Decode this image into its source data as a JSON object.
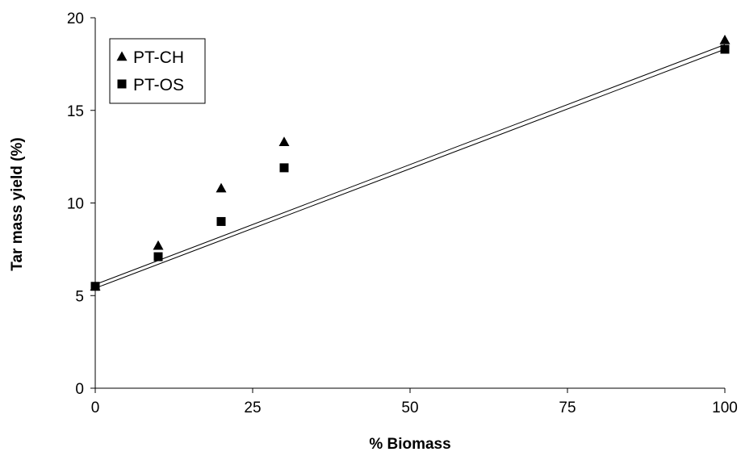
{
  "chart_data": {
    "type": "scatter",
    "title": "",
    "xlabel": "% Biomass",
    "ylabel": "Tar mass yield (%)",
    "xlim": [
      0,
      100
    ],
    "ylim": [
      0,
      20
    ],
    "xticks": [
      0,
      25,
      50,
      75,
      100
    ],
    "yticks": [
      0,
      5,
      10,
      15,
      20
    ],
    "xtick_labels": [
      "0",
      "25",
      "50",
      "75",
      "100"
    ],
    "ytick_labels": [
      "0",
      "5",
      "10",
      "15",
      "20"
    ],
    "grid": false,
    "legend_position": "top-left",
    "series": [
      {
        "name": "PT-CH",
        "marker": "triangle",
        "color": "#000000",
        "x": [
          0,
          10,
          20,
          30,
          100
        ],
        "y": [
          5.5,
          7.7,
          10.8,
          13.3,
          18.8
        ]
      },
      {
        "name": "PT-OS",
        "marker": "square",
        "color": "#000000",
        "x": [
          0,
          10,
          20,
          30,
          100
        ],
        "y": [
          5.5,
          7.1,
          9.0,
          11.9,
          18.3
        ]
      }
    ],
    "lines": [
      {
        "x": [
          0,
          100
        ],
        "y": [
          5.6,
          18.55
        ]
      },
      {
        "x": [
          0,
          100
        ],
        "y": [
          5.4,
          18.3
        ]
      }
    ]
  }
}
